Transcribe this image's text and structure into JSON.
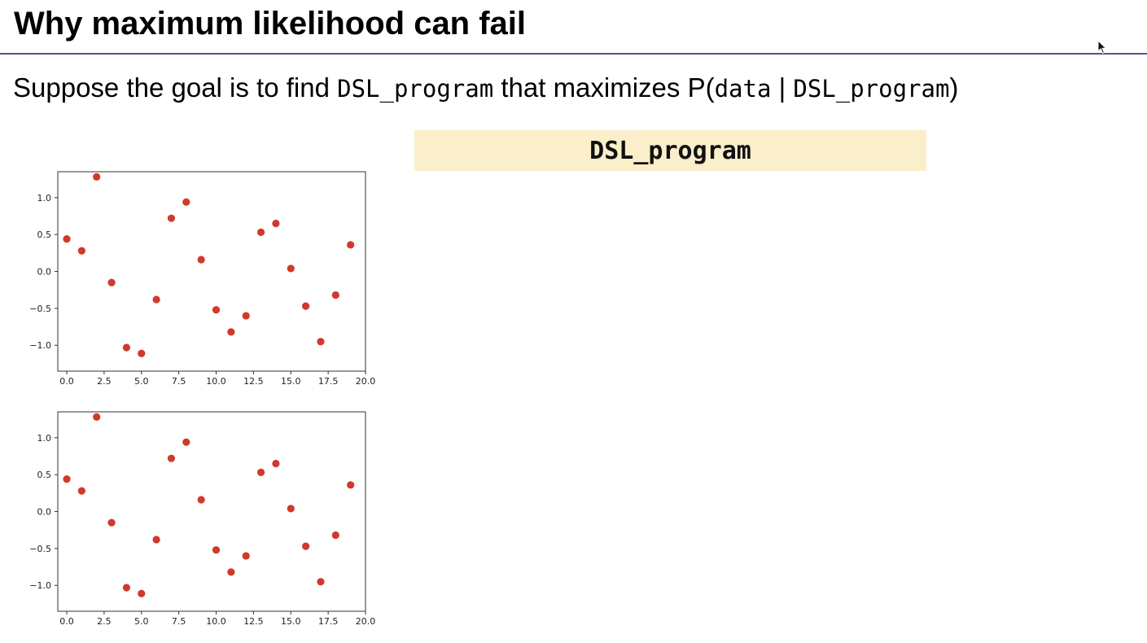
{
  "title": "Why maximum likelihood can fail",
  "subtitle": {
    "prefix": "Suppose the goal is to find ",
    "code1": "DSL_program",
    "middle": " that maximizes P(",
    "code2": "data",
    "bar": " | ",
    "code3": "DSL_program",
    "suffix": ")"
  },
  "program_box": {
    "label": "DSL_program"
  },
  "colors": {
    "point": "#d0392b",
    "rule": "#4a5a86",
    "box": "#fbeecb"
  },
  "chart_data": [
    {
      "type": "scatter",
      "title": "",
      "xlabel": "",
      "ylabel": "",
      "xlim": [
        -0.6,
        20.0
      ],
      "ylim": [
        -1.35,
        1.35
      ],
      "x_ticks": [
        0.0,
        2.5,
        5.0,
        7.5,
        10.0,
        12.5,
        15.0,
        17.5,
        20.0
      ],
      "x_tick_labels": [
        "0.0",
        "2.5",
        "5.0",
        "7.5",
        "10.0",
        "12.5",
        "15.0",
        "17.5",
        "20.0"
      ],
      "y_ticks": [
        1.0,
        0.5,
        0.0,
        -0.5,
        -1.0
      ],
      "y_tick_labels": [
        "1.0",
        "0.5",
        "0.0",
        "−0.5",
        "−1.0"
      ],
      "x": [
        0,
        1,
        2,
        3,
        4,
        5,
        6,
        7,
        8,
        9,
        10,
        11,
        12,
        13,
        14,
        15,
        16,
        17,
        18,
        19
      ],
      "y": [
        0.44,
        0.28,
        1.28,
        -0.15,
        -1.03,
        -1.11,
        -0.38,
        0.72,
        0.94,
        0.16,
        -0.52,
        -0.82,
        -0.6,
        0.53,
        0.65,
        0.04,
        -0.47,
        -0.95,
        -0.32,
        0.36
      ]
    },
    {
      "type": "scatter",
      "title": "",
      "xlabel": "",
      "ylabel": "",
      "xlim": [
        -0.6,
        20.0
      ],
      "ylim": [
        -1.35,
        1.35
      ],
      "x_ticks": [
        0.0,
        2.5,
        5.0,
        7.5,
        10.0,
        12.5,
        15.0,
        17.5,
        20.0
      ],
      "x_tick_labels": [
        "0.0",
        "2.5",
        "5.0",
        "7.5",
        "10.0",
        "12.5",
        "15.0",
        "17.5",
        "20.0"
      ],
      "y_ticks": [
        1.0,
        0.5,
        0.0,
        -0.5,
        -1.0
      ],
      "y_tick_labels": [
        "1.0",
        "0.5",
        "0.0",
        "−0.5",
        "−1.0"
      ],
      "x": [
        0,
        1,
        2,
        3,
        4,
        5,
        6,
        7,
        8,
        9,
        10,
        11,
        12,
        13,
        14,
        15,
        16,
        17,
        18,
        19
      ],
      "y": [
        0.44,
        0.28,
        1.28,
        -0.15,
        -1.03,
        -1.11,
        -0.38,
        0.72,
        0.94,
        0.16,
        -0.52,
        -0.82,
        -0.6,
        0.53,
        0.65,
        0.04,
        -0.47,
        -0.95,
        -0.32,
        0.36
      ]
    }
  ]
}
